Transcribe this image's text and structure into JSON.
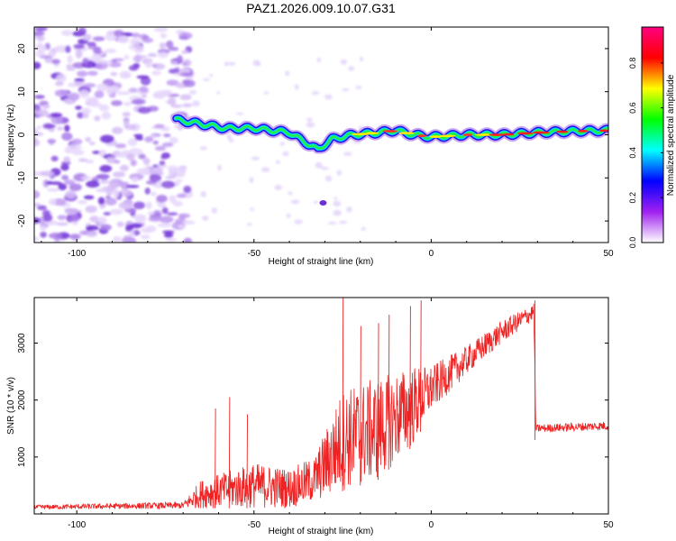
{
  "title": "PAZ1.2026.009.10.07.G31",
  "chart_data": [
    {
      "type": "heatmap",
      "name": "spectrogram",
      "xlabel": "Height of straight line (km)",
      "ylabel": "Frequency (Hz)",
      "xlim": [
        -112,
        50
      ],
      "ylim": [
        -25,
        25
      ],
      "xticks": [
        -100,
        -50,
        0,
        50
      ],
      "yticks": [
        -20,
        -10,
        0,
        10,
        20
      ],
      "noise_region_end_km": -68,
      "signal_track": [
        {
          "x": -72,
          "y": 3.5
        },
        {
          "x": -65,
          "y": 2.5
        },
        {
          "x": -58,
          "y": 1.5
        },
        {
          "x": -50,
          "y": 1.5
        },
        {
          "x": -45,
          "y": 1.0
        },
        {
          "x": -40,
          "y": 0.5
        },
        {
          "x": -36,
          "y": -1.5
        },
        {
          "x": -32,
          "y": -3.5
        },
        {
          "x": -28,
          "y": -1.0
        },
        {
          "x": -22,
          "y": 0.0
        },
        {
          "x": -15,
          "y": 0.5
        },
        {
          "x": -10,
          "y": 1.0
        },
        {
          "x": -5,
          "y": 0.0
        },
        {
          "x": 0,
          "y": -0.5
        },
        {
          "x": 10,
          "y": 0.0
        },
        {
          "x": 20,
          "y": 0.0
        },
        {
          "x": 30,
          "y": 0.5
        },
        {
          "x": 40,
          "y": 0.8
        },
        {
          "x": 50,
          "y": 1.0
        }
      ],
      "colorbar": {
        "label": "Normalized spectral amplitude",
        "ticks": [
          0.0,
          0.2,
          0.4,
          0.6,
          0.8
        ],
        "range": [
          0,
          0.96
        ],
        "colors": [
          "#ffffff",
          "#a020f0",
          "#0000ff",
          "#00ffff",
          "#00ff00",
          "#ffff00",
          "#ff0000",
          "#ff0080"
        ]
      }
    },
    {
      "type": "line",
      "name": "snr",
      "xlabel": "Height of straight line (km)",
      "ylabel": "SNR (10 * v/v)",
      "xlim": [
        -112,
        50
      ],
      "ylim": [
        0,
        3800
      ],
      "xticks": [
        -100,
        -50,
        0,
        50
      ],
      "yticks": [
        1000,
        2000,
        3000
      ],
      "color": "#ee2222",
      "envelope": [
        {
          "x": -112,
          "base": 120,
          "noise": 40
        },
        {
          "x": -70,
          "base": 150,
          "noise": 60
        },
        {
          "x": -65,
          "base": 350,
          "noise": 250
        },
        {
          "x": -50,
          "base": 500,
          "noise": 400
        },
        {
          "x": -40,
          "base": 450,
          "noise": 350
        },
        {
          "x": -33,
          "base": 600,
          "noise": 400
        },
        {
          "x": -25,
          "base": 1300,
          "noise": 900
        },
        {
          "x": -15,
          "base": 1500,
          "noise": 900
        },
        {
          "x": -5,
          "base": 1900,
          "noise": 700
        },
        {
          "x": 0,
          "base": 2200,
          "noise": 400
        },
        {
          "x": 10,
          "base": 2700,
          "noise": 250
        },
        {
          "x": 20,
          "base": 3200,
          "noise": 200
        },
        {
          "x": 29,
          "base": 3550,
          "noise": 150
        },
        {
          "x": 29.5,
          "base": 1500,
          "noise": 70
        },
        {
          "x": 50,
          "base": 1550,
          "noise": 80
        }
      ],
      "spikes": [
        {
          "x": -61,
          "y": 1850
        },
        {
          "x": -57,
          "y": 2050
        },
        {
          "x": -52,
          "y": 1750
        },
        {
          "x": -25,
          "y": 3800
        },
        {
          "x": -20,
          "y": 3300
        },
        {
          "x": -15,
          "y": 3350
        },
        {
          "x": -12,
          "y": 3500
        },
        {
          "x": -6,
          "y": 3650
        },
        {
          "x": -3,
          "y": 3750
        }
      ]
    }
  ]
}
